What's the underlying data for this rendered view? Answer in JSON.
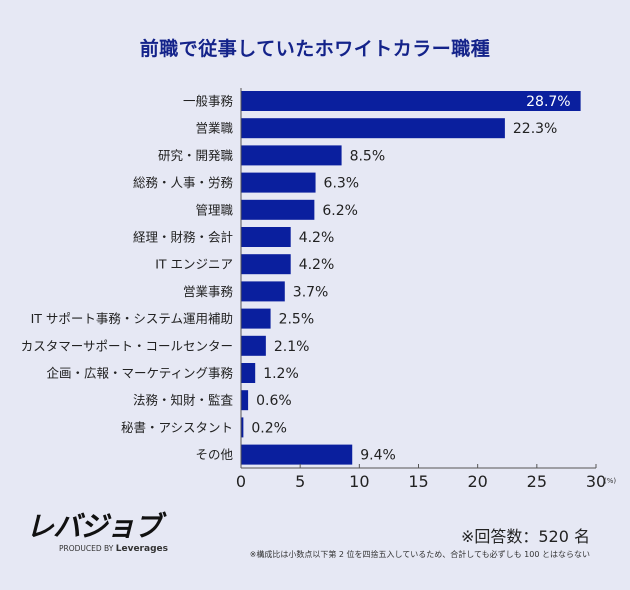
{
  "chart_data": {
    "type": "bar",
    "orientation": "horizontal",
    "title": "前職で従事していたホワイトカラー職種",
    "categories": [
      "一般事務",
      "営業職",
      "研究・開発職",
      "総務・人事・労務",
      "管理職",
      "経理・財務・会計",
      "IT エンジニア",
      "営業事務",
      "IT サポート事務・システム運用補助",
      "カスタマーサポート・コールセンター",
      "企画・広報・マーケティング事務",
      "法務・知財・監査",
      "秘書・アシスタント",
      "その他"
    ],
    "values": [
      28.7,
      22.3,
      8.5,
      6.3,
      6.2,
      4.2,
      4.2,
      3.7,
      2.5,
      2.1,
      1.2,
      0.6,
      0.2,
      9.4
    ],
    "value_labels": [
      "28.7%",
      "22.3%",
      "8.5%",
      "6.3%",
      "6.2%",
      "4.2%",
      "4.2%",
      "3.7%",
      "2.5%",
      "2.1%",
      "1.2%",
      "0.6%",
      "0.2%",
      "9.4%"
    ],
    "xlim": [
      0,
      30
    ],
    "xticks": [
      "0",
      "5",
      "10",
      "15",
      "20",
      "25",
      "30"
    ],
    "xunit": "(%)",
    "grid": false,
    "bar_color": "#0a1f9e",
    "background": "#e6e8f4"
  },
  "footer": {
    "logo_text": "レバジョブ",
    "logo_produced_by": "PRODUCED BY",
    "logo_brand": "Leverages",
    "respondents": "※回答数：520 名",
    "note": "※構成比は小数点以下第 2 位を四捨五入しているため、合計しても必ずしも 100 とはならない"
  }
}
